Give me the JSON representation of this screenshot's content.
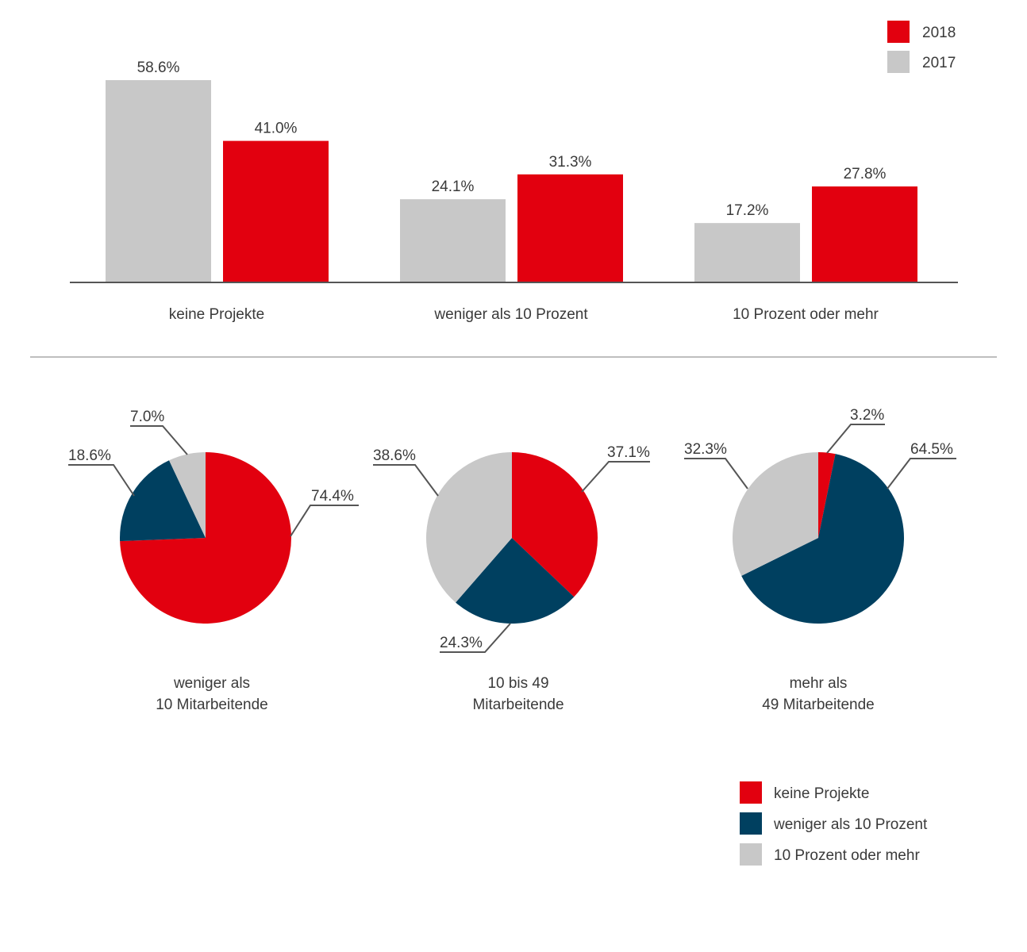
{
  "colors": {
    "red": "#e2000f",
    "grey": "#c8c8c8",
    "navy": "#004060",
    "axis": "#555555",
    "separator": "#aaaaaa",
    "leader": "#555555",
    "text": "#3a3a3a"
  },
  "chart_data": [
    {
      "type": "bar",
      "title": "",
      "categories": [
        "keine Projekte",
        "weniger als 10 Prozent",
        "10 Prozent oder mehr"
      ],
      "series": [
        {
          "name": "2017",
          "color": "#c8c8c8",
          "values": [
            58.6,
            24.1,
            17.2
          ]
        },
        {
          "name": "2018",
          "color": "#e2000f",
          "values": [
            41.0,
            31.3,
            27.8
          ]
        }
      ],
      "value_labels": {
        "2017": [
          "58.6%",
          "24.1%",
          "17.2%"
        ],
        "2018": [
          "41.0%",
          "31.3%",
          "27.8%"
        ]
      },
      "ylim": [
        0,
        60
      ],
      "grid": false,
      "legend": {
        "placement": "top-right",
        "entries": [
          {
            "label": "2018",
            "color": "#e2000f"
          },
          {
            "label": "2017",
            "color": "#c8c8c8"
          }
        ]
      }
    },
    {
      "type": "pie",
      "slice_order": [
        "keine Projekte",
        "weniger als 10 Prozent",
        "10 Prozent oder mehr"
      ],
      "slice_colors": [
        "#e2000f",
        "#004060",
        "#c8c8c8"
      ],
      "pies": [
        {
          "label_lines": [
            "weniger als",
            "10 Mitarbeitende"
          ],
          "values": [
            74.4,
            18.6,
            7.0
          ],
          "labels": [
            "74.4%",
            "18.6%",
            "7.0%"
          ]
        },
        {
          "label_lines": [
            "10 bis 49",
            "Mitarbeitende"
          ],
          "values": [
            37.1,
            24.3,
            38.6
          ],
          "labels": [
            "37.1%",
            "24.3%",
            "38.6%"
          ]
        },
        {
          "label_lines": [
            "mehr als",
            "49 Mitarbeitende"
          ],
          "values": [
            3.2,
            64.5,
            32.3
          ],
          "labels": [
            "3.2%",
            "64.5%",
            "32.3%"
          ]
        }
      ],
      "legend": {
        "placement": "bottom-right",
        "entries": [
          {
            "label": "keine Projekte",
            "color": "#e2000f"
          },
          {
            "label": "weniger als 10 Prozent",
            "color": "#004060"
          },
          {
            "label": "10 Prozent oder mehr",
            "color": "#c8c8c8"
          }
        ]
      }
    }
  ]
}
